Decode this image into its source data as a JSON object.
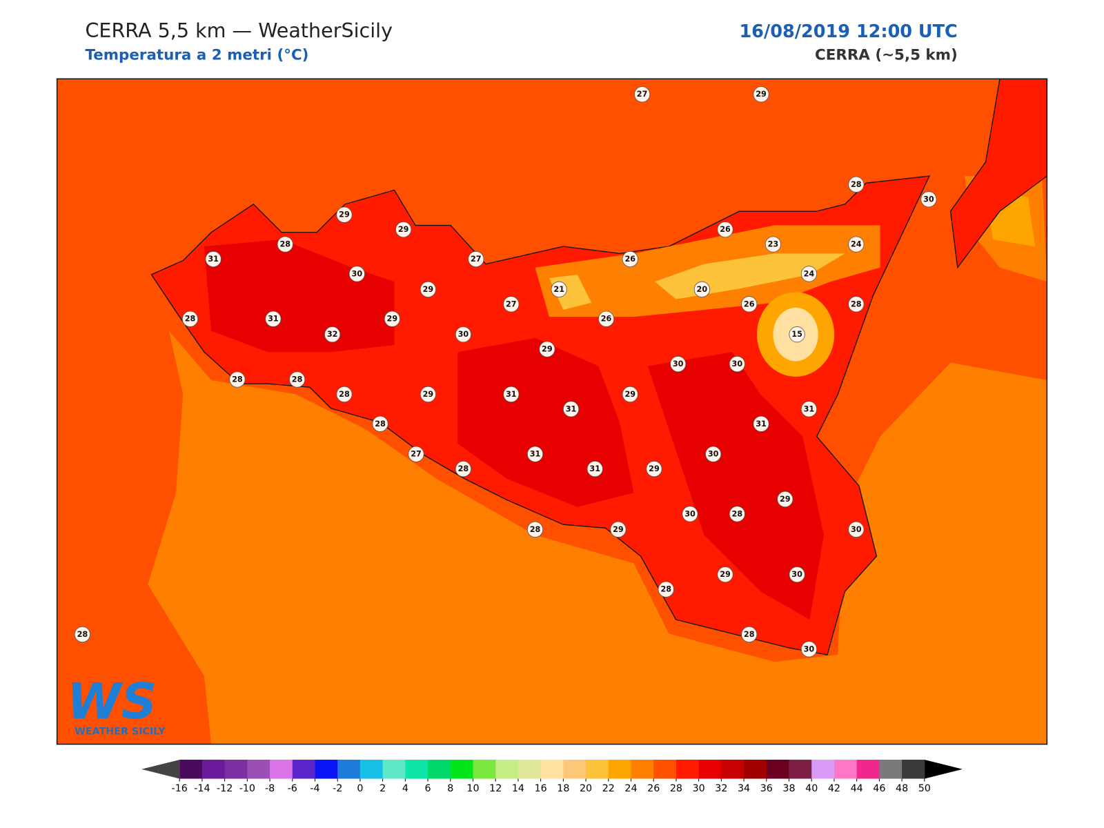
{
  "header": {
    "title": "CERRA 5,5 km — WeatherSicily",
    "subtitle": "Temperatura a 2 metri (°C)",
    "date": "16/08/2019 12:00 UTC",
    "model": "CERRA (~5,5 km)"
  },
  "logo": {
    "mark": "WS",
    "name": "WEATHER SICILY"
  },
  "stations": [
    27,
    29,
    28,
    30,
    29,
    29,
    28,
    26,
    23,
    24,
    31,
    27,
    26,
    30,
    24,
    29,
    21,
    20,
    27,
    28,
    26,
    28,
    31,
    29,
    26,
    32,
    30,
    15,
    29,
    30,
    30,
    28,
    28,
    28,
    29,
    31,
    29,
    31,
    31,
    28,
    31,
    27,
    31,
    30,
    28,
    31,
    29,
    29,
    30,
    28,
    28,
    29,
    30,
    29,
    30,
    28,
    28,
    28,
    30
  ],
  "colorbar": {
    "ticks": [
      -16,
      -14,
      -12,
      -10,
      -8,
      -6,
      -4,
      -2,
      0,
      2,
      4,
      6,
      8,
      10,
      12,
      14,
      16,
      18,
      20,
      22,
      24,
      26,
      28,
      30,
      32,
      34,
      36,
      38,
      40,
      42,
      44,
      46,
      48,
      50
    ],
    "colors": [
      "#4a0a5e",
      "#6a1a9a",
      "#7b2fa0",
      "#9b4fb5",
      "#db72e8",
      "#5b25c9",
      "#0a14f5",
      "#1c7ad9",
      "#16c0e6",
      "#5fe8c8",
      "#0ee6a8",
      "#00d96a",
      "#00e61a",
      "#7ae83c",
      "#c6ec88",
      "#dfe69a",
      "#ffe0a0",
      "#fcc878",
      "#fcc23a",
      "#ffa500",
      "#ff8000",
      "#ff5000",
      "#ff1a00",
      "#e60000",
      "#c80000",
      "#a00000",
      "#6b0020",
      "#7e2046",
      "#d89cf8",
      "#ff78c8",
      "#f0288c",
      "#7a7a7a",
      "#3a3a3a"
    ],
    "under_color": "#444444",
    "over_color": "#000000"
  }
}
